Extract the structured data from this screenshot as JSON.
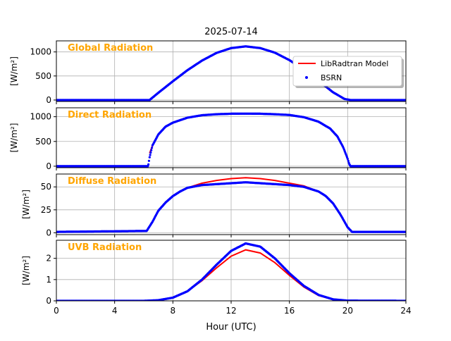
{
  "figure": {
    "title": "2025-07-14",
    "xlabel": "Hour (UTC)"
  },
  "colors": {
    "model": "#ff0000",
    "obs": "#0000ff",
    "panel_title": "#ffa500",
    "grid": "#b0b0b0"
  },
  "legend": {
    "placement": "upper right of first panel",
    "model_label": "LibRadtran Model",
    "obs_label": "BSRN"
  },
  "chart_data": [
    {
      "type": "line",
      "title": "Global Radiation",
      "ylabel": "[W/m²]",
      "xlim": [
        0,
        24
      ],
      "ylim": [
        -30,
        1230
      ],
      "xticks": [
        0,
        4,
        8,
        12,
        16,
        20,
        24
      ],
      "yticks": [
        0,
        500,
        1000
      ],
      "grid": true,
      "series": [
        {
          "name": "LibRadtran Model",
          "style": "line",
          "x": [
            0,
            6.4,
            7,
            8,
            9,
            10,
            11,
            12,
            13,
            14,
            15,
            16,
            17,
            18,
            19,
            19.8,
            20.2,
            24
          ],
          "values": [
            0,
            0,
            150,
            390,
            620,
            820,
            980,
            1080,
            1110,
            1080,
            985,
            830,
            630,
            400,
            160,
            20,
            0,
            0
          ]
        },
        {
          "name": "BSRN",
          "style": "dots",
          "x": [
            0,
            6.4,
            7,
            8,
            9,
            10,
            11,
            12,
            13,
            14,
            15,
            16,
            17,
            18,
            19,
            19.8,
            20.2,
            24
          ],
          "values": [
            0,
            0,
            150,
            390,
            620,
            820,
            980,
            1080,
            1115,
            1080,
            985,
            830,
            630,
            400,
            160,
            20,
            0,
            0
          ]
        }
      ]
    },
    {
      "type": "line",
      "title": "Direct Radiation",
      "ylabel": "[W/m²]",
      "xlim": [
        0,
        24
      ],
      "ylim": [
        -30,
        1180
      ],
      "xticks": [
        0,
        4,
        8,
        12,
        16,
        20,
        24
      ],
      "yticks": [
        0,
        500,
        1000
      ],
      "grid": true,
      "series": [
        {
          "name": "LibRadtran Model",
          "style": "line",
          "x": [
            6.4,
            6.6,
            7,
            7.5,
            8,
            9,
            10,
            11,
            12,
            13,
            14,
            15,
            16,
            17,
            18,
            18.8,
            19.3,
            19.7,
            20,
            20.1
          ],
          "values": [
            260,
            420,
            640,
            800,
            880,
            980,
            1030,
            1050,
            1060,
            1062,
            1060,
            1050,
            1035,
            990,
            900,
            760,
            600,
            380,
            150,
            50
          ]
        },
        {
          "name": "BSRN",
          "style": "dots",
          "x": [
            0,
            6.3,
            6.4,
            6.6,
            7,
            7.5,
            8,
            9,
            10,
            11,
            12,
            13,
            14,
            15,
            16,
            17,
            18,
            18.8,
            19.3,
            19.7,
            20,
            20.1,
            20.2,
            24
          ],
          "values": [
            0,
            0,
            180,
            420,
            640,
            800,
            880,
            980,
            1030,
            1050,
            1060,
            1062,
            1060,
            1050,
            1035,
            990,
            900,
            760,
            600,
            380,
            150,
            50,
            0,
            0
          ]
        }
      ]
    },
    {
      "type": "line",
      "title": "Diffuse Radiation",
      "ylabel": "[W/m²]",
      "xlim": [
        0,
        24
      ],
      "ylim": [
        -2,
        64
      ],
      "xticks": [
        0,
        4,
        8,
        12,
        16,
        20,
        24
      ],
      "yticks": [
        0,
        25,
        50
      ],
      "grid": true,
      "series": [
        {
          "name": "LibRadtran Model",
          "style": "line",
          "x": [
            0,
            6.2,
            6.6,
            7,
            7.5,
            8,
            8.5,
            9,
            10,
            11,
            12,
            13,
            14,
            15,
            16,
            17,
            18,
            18.5,
            19,
            19.5,
            20,
            20.3,
            24
          ],
          "values": [
            1,
            2,
            12,
            24,
            33,
            40,
            45,
            49,
            54,
            57,
            59,
            60,
            59,
            57,
            54,
            51,
            45,
            40,
            32,
            20,
            6,
            1,
            1
          ]
        },
        {
          "name": "BSRN",
          "style": "dots",
          "x": [
            0,
            6.2,
            6.6,
            7,
            7.5,
            8,
            8.5,
            9,
            10,
            11,
            12,
            13,
            14,
            15,
            16,
            17,
            18,
            18.5,
            19,
            19.5,
            20,
            20.3,
            24
          ],
          "values": [
            1,
            2,
            12,
            24,
            33,
            40,
            45,
            49,
            52,
            53,
            54,
            55,
            54,
            53,
            52,
            50,
            45,
            40,
            32,
            20,
            6,
            1,
            1
          ]
        }
      ]
    },
    {
      "type": "line",
      "title": "UVB Radiation",
      "ylabel": "[W/m²]",
      "xlim": [
        0,
        24
      ],
      "ylim": [
        0,
        2.85
      ],
      "xticks": [
        0,
        4,
        8,
        12,
        16,
        20,
        24
      ],
      "yticks": [
        0,
        1,
        2
      ],
      "grid": true,
      "series": [
        {
          "name": "LibRadtran Model",
          "style": "line",
          "x": [
            0,
            6,
            7,
            8,
            9,
            10,
            11,
            12,
            13,
            14,
            15,
            16,
            17,
            18,
            19,
            20,
            24
          ],
          "values": [
            0,
            0,
            0.03,
            0.15,
            0.45,
            0.95,
            1.55,
            2.1,
            2.4,
            2.25,
            1.8,
            1.2,
            0.65,
            0.25,
            0.06,
            0.01,
            0
          ]
        },
        {
          "name": "BSRN",
          "style": "dots",
          "x": [
            0,
            6,
            7,
            8,
            9,
            10,
            11,
            12,
            13,
            14,
            15,
            16,
            17,
            18,
            19,
            20,
            24
          ],
          "values": [
            0,
            0,
            0.03,
            0.15,
            0.45,
            1.0,
            1.7,
            2.35,
            2.7,
            2.55,
            2.0,
            1.3,
            0.7,
            0.28,
            0.07,
            0.01,
            0
          ]
        }
      ]
    }
  ]
}
